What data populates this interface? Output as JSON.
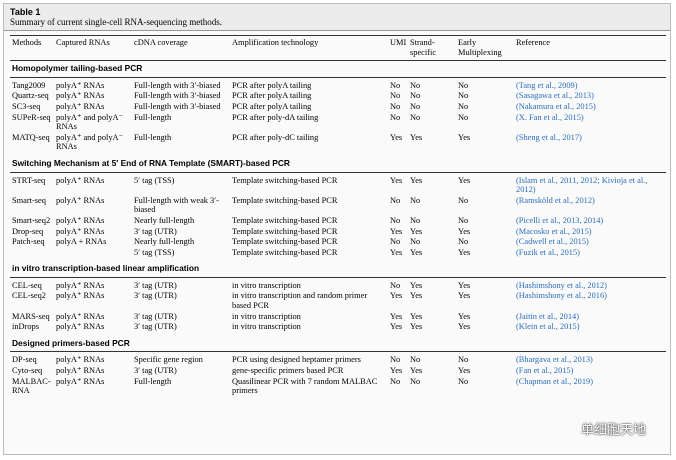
{
  "table_label": "Table 1",
  "caption": "Summary of current single-cell RNA-sequencing methods.",
  "headers": [
    "Methods",
    "Captured RNAs",
    "cDNA coverage",
    "Amplification technology",
    "UMI",
    "Strand-specific",
    "Early Multiplexing",
    "Reference"
  ],
  "sections": [
    {
      "title": "Homopolymer tailing-based PCR",
      "rows": [
        [
          "Tang2009",
          "polyA⁺ RNAs",
          "Full-length with 3′-biased",
          "PCR after polyA tailing",
          "No",
          "No",
          "No",
          "(Tang et al., 2009)"
        ],
        [
          "Quartz-seq",
          "polyA⁺ RNAs",
          "Full-length with 3′-biased",
          "PCR after polyA tailing",
          "No",
          "No",
          "No",
          "(Sasagawa et al., 2013)"
        ],
        [
          "SC3-seq",
          "polyA⁺ RNAs",
          "Full-length with 3′-biased",
          "PCR after polyA tailing",
          "No",
          "No",
          "No",
          "(Nakamura et al., 2015)"
        ],
        [
          "SUPeR-seq",
          "polyA⁺ and polyA⁻ RNAs",
          "Full-length",
          "PCR after poly-dA tailing",
          "No",
          "No",
          "No",
          "(X. Fan et al., 2015)"
        ],
        [
          "MATQ-seq",
          "polyA⁺ and polyA⁻ RNAs",
          "Full-length",
          "PCR after poly-dC tailing",
          "Yes",
          "Yes",
          "Yes",
          "(Sheng et al., 2017)"
        ]
      ]
    },
    {
      "title": "Switching Mechanism at 5′ End of RNA Template (SMART)-based PCR",
      "rows": [
        [
          "STRT-seq",
          "polyA⁺ RNAs",
          "5′ tag (TSS)",
          "Template switching-based PCR",
          "Yes",
          "Yes",
          "Yes",
          "(Islam et al., 2011, 2012; Kivioja et al., 2012)"
        ],
        [
          "Smart-seq",
          "polyA⁺ RNAs",
          "Full-length with weak 3′-biased",
          "Template switching-based PCR",
          "No",
          "No",
          "No",
          "(Ramsköld et al., 2012)"
        ],
        [
          "Smart-seq2",
          "polyA⁺ RNAs",
          "Nearly full-length",
          "Template switching-based PCR",
          "No",
          "No",
          "No",
          "(Picelli et al., 2013, 2014)"
        ],
        [
          "Drop-seq",
          "polyA⁺ RNAs",
          "3′ tag (UTR)",
          "Template switching-based PCR",
          "Yes",
          "Yes",
          "Yes",
          "(Macosko et al., 2015)"
        ],
        [
          "Patch-seq",
          "polyA + RNAs",
          "Nearly full-length",
          "Template switching-based PCR",
          "No",
          "No",
          "No",
          "(Cadwell et al., 2015)"
        ],
        [
          null,
          null,
          "5′ tag (TSS)",
          "Template switching-based PCR",
          "Yes",
          "Yes",
          "Yes",
          "(Fuzik et al., 2015)"
        ]
      ]
    },
    {
      "title": "in vitro transcription-based linear amplification",
      "rows": [
        [
          "CEL-seq",
          "polyA⁺ RNAs",
          "3′ tag (UTR)",
          "in vitro transcription",
          "No",
          "Yes",
          "Yes",
          "(Hashimshony et al., 2012)"
        ],
        [
          "CEL-seq2",
          "polyA⁺ RNAs",
          "3′ tag (UTR)",
          "in vitro transcription and random primer based PCR",
          "Yes",
          "Yes",
          "Yes",
          "(Hashimshony et al., 2016)"
        ],
        [
          "MARS-seq",
          "polyA⁺ RNAs",
          "3′ tag (UTR)",
          "in vitro transcription",
          "Yes",
          "Yes",
          "Yes",
          "(Jaitin et al., 2014)"
        ],
        [
          "inDrops",
          "polyA⁺ RNAs",
          "3′ tag (UTR)",
          "in vitro transcription",
          "Yes",
          "Yes",
          "Yes",
          "(Klein et al., 2015)"
        ]
      ]
    },
    {
      "title": "Designed primers-based PCR",
      "rows": [
        [
          "DP-seq",
          "polyA⁺ RNAs",
          "Specific gene region",
          "PCR using designed heptamer primers",
          "No",
          "No",
          "No",
          "(Bhargava et al., 2013)"
        ],
        [
          "Cyto-seq",
          "polyA⁺ RNAs",
          "3′ tag (UTR)",
          "gene-specific primers based PCR",
          "Yes",
          "Yes",
          "Yes",
          "(Fan et al., 2015)"
        ],
        [
          "MALBAC-RNA",
          "polyA⁺ RNAs",
          "Full-length",
          "Quasilinear PCR with 7 random MALBAC primers",
          "No",
          "No",
          "No",
          "(Chapman et al., 2019)"
        ]
      ]
    }
  ],
  "watermark": "单细胞天地"
}
